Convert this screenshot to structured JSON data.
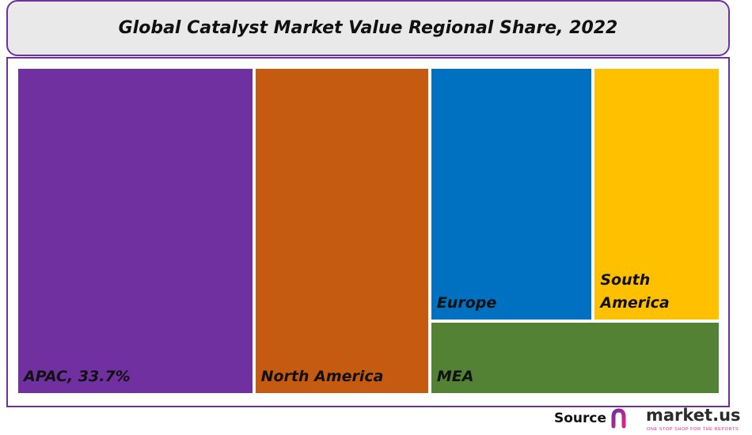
{
  "chart_data": {
    "type": "treemap",
    "title": "Global Catalyst Market Value Regional Share, 2022",
    "year": 2022,
    "series": [
      {
        "name": "APAC",
        "label": "APAC, 33.7%",
        "value": 33.7,
        "color": "#7030a0"
      },
      {
        "name": "North America",
        "label": "North America",
        "value": 25.0,
        "color": "#c55a11"
      },
      {
        "name": "Europe",
        "label": "Europe",
        "value": 18.0,
        "color": "#0070c0"
      },
      {
        "name": "South America",
        "label": "South\nAmerica",
        "value": 14.0,
        "color": "#ffc000"
      },
      {
        "name": "MEA",
        "label": "MEA",
        "value": 9.3,
        "color": "#548235"
      }
    ]
  },
  "footer": {
    "source_label": "Source",
    "brand_name": "market.us",
    "brand_tagline": "ONE STOP SHOP FOR THE REPORTS"
  },
  "colors": {
    "accent": "#7030a0",
    "title_background": "#e9e9ea",
    "brand_pink": "#e0218a"
  },
  "icons": {
    "brand": "market-us-logo-icon"
  }
}
